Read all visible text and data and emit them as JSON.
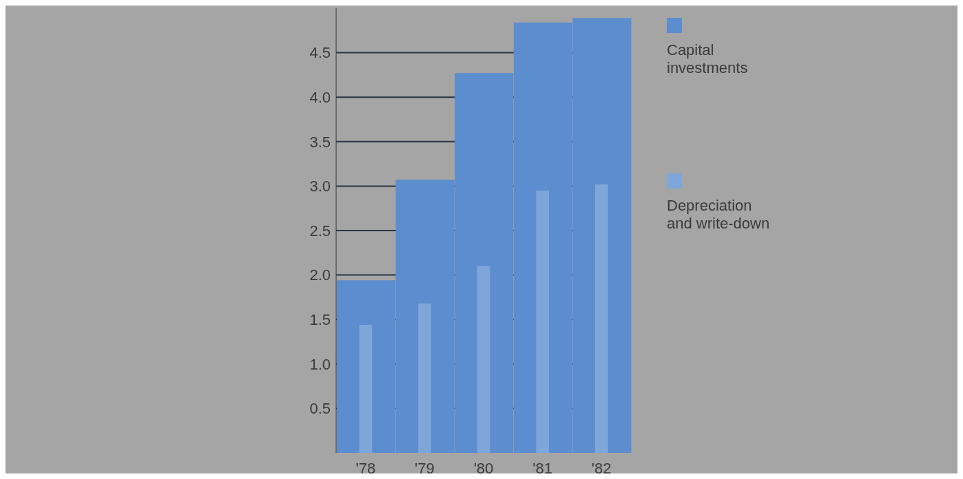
{
  "chart_data": {
    "type": "bar",
    "categories": [
      "'78",
      "'79",
      "'80",
      "'81",
      "'82"
    ],
    "series": [
      {
        "name": "Capital investments",
        "color": "#5b8dcf",
        "values": [
          1.94,
          3.07,
          4.27,
          4.84,
          4.89
        ]
      },
      {
        "name": "Depreciation and write-down",
        "color": "#7fa6d9",
        "values": [
          1.44,
          1.68,
          2.1,
          2.95,
          3.02
        ]
      }
    ],
    "yticks": [
      0.5,
      {
        "value": 1,
        "label": "1.0"
      },
      1.5,
      {
        "value": 2,
        "label": "2.0"
      },
      2.5,
      {
        "value": 3,
        "label": "3.0"
      },
      3.5,
      {
        "value": 4,
        "label": "4.0"
      },
      4.5
    ],
    "ylim": [
      0,
      5
    ],
    "grid": "y",
    "legend": "top right"
  }
}
